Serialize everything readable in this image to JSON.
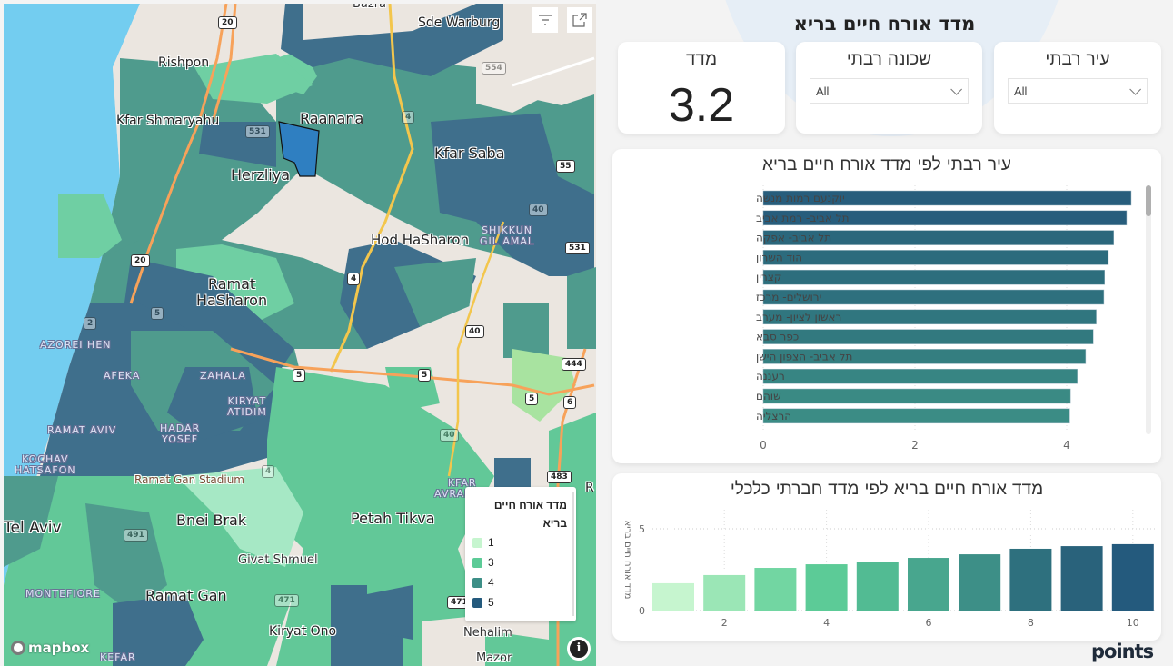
{
  "map": {
    "labels": {
      "rishpon": "Rishpon",
      "kfar_shmaryahu": "Kfar Shmaryahu",
      "raanana": "Raanana",
      "sde_warburg": "Sde Warburg",
      "kfar_saba": "Kfar Saba",
      "herzliya": "Herzliya",
      "hod_hasharon": "Hod HaSharon",
      "shikkun_gil_amal": "SHIKKUN\nGIL AMAL",
      "ramat_hasharon": "Ramat\nHaSharon",
      "azorei_hen": "AZOREI HEN",
      "afeka": "AFEKA",
      "zahala": "ZAHALA",
      "kiryat_atidim": "KIRYAT\nATIDIM",
      "ramat_aviv": "RAMAT AVIV",
      "hadar_yosef": "HADAR\nYOSEF",
      "kochav_hatsafon": "KOCHAV\nHATSAFON",
      "ramat_gan_stadium": "Ramat Gan Stadium",
      "kfar_avraham": "KFAR\nAVRAHAM",
      "tel_aviv": "Tel Aviv",
      "bnei_brak": "Bnei Brak",
      "petah_tikva": "Petah Tikva",
      "givat_shmuel": "Givat Shmuel",
      "montefiore": "MONTEFIORE",
      "ramat_gan": "Ramat Gan",
      "kiryat_ono": "Kiryat Ono",
      "nehalim": "Nehalim",
      "mazor": "Mazor",
      "kefar": "KEFAR",
      "bazra": "Bazra",
      "r_edge": "R"
    },
    "road_shields": [
      "20",
      "554",
      "531",
      "4",
      "55",
      "40",
      "531",
      "20",
      "4",
      "5",
      "5",
      "40",
      "444",
      "5",
      "6",
      "40",
      "483",
      "491",
      "471",
      "471",
      "4",
      "2",
      "5"
    ],
    "legend": {
      "title": "מדד אורח חיים בריא",
      "items": [
        {
          "label": "1",
          "color": "#c6f5cf"
        },
        {
          "label": "3",
          "color": "#5ccb97"
        },
        {
          "label": "4",
          "color": "#3d8f87"
        },
        {
          "label": "5",
          "color": "#245a7d"
        }
      ]
    },
    "attribution": "mapbox",
    "info_icon": "i",
    "tools": {
      "filter_icon": "filter-icon",
      "focus_icon": "focus-mode-icon"
    }
  },
  "dashboard": {
    "title": "מדד אורח חיים בריא",
    "kpi": {
      "label": "מדד",
      "value": "3.2"
    },
    "slicers": [
      {
        "label": "שכונה רבתי",
        "value": "All"
      },
      {
        "label": "עיר רבתי",
        "value": "All"
      }
    ],
    "logo": "points"
  },
  "chart_data": [
    {
      "type": "bar",
      "orientation": "horizontal",
      "title": "עיר רבתי לפי מדד אורח חיים בריא",
      "categories": [
        "יוקנעם רמות מנשה",
        "תל אביב- רמת אביב",
        "תל אביב- אפקה",
        "הוד השרון",
        "קצרין",
        "ירושלים- מרכז",
        "ראשון לציון- מערב",
        "כפר סבא",
        "תל אביב- הצפון הישן",
        "רעננה",
        "שוהם",
        "הרצליה"
      ],
      "values": [
        4.85,
        4.79,
        4.62,
        4.55,
        4.5,
        4.49,
        4.39,
        4.35,
        4.25,
        4.14,
        4.05,
        4.04
      ],
      "colors": [
        "#275d7c",
        "#275d7c",
        "#2b677c",
        "#2c6b7d",
        "#2d6e7d",
        "#2e707e",
        "#30767f",
        "#32797f",
        "#347e80",
        "#378583",
        "#3a8a84",
        "#3b8c85"
      ],
      "xticks": [
        "0",
        "2",
        "4"
      ],
      "xlim": [
        0,
        4.9
      ],
      "grid": true
    },
    {
      "type": "bar",
      "orientation": "vertical",
      "title": "מדד אורח חיים בריא לפי מדד חברתי כלכלי",
      "ylabel": "מדד אורח חיים בריא",
      "categories": [
        "1",
        "2",
        "3",
        "4",
        "5",
        "6",
        "7",
        "8",
        "9",
        "10"
      ],
      "values": [
        1.67,
        2.17,
        2.61,
        2.83,
        3.0,
        3.22,
        3.44,
        3.78,
        3.94,
        4.06
      ],
      "colors": [
        "#c6f5cf",
        "#9be6b6",
        "#72d6a2",
        "#5ccb97",
        "#52bb93",
        "#48a68e",
        "#3d8f87",
        "#2e707e",
        "#29627b",
        "#245a7d"
      ],
      "xticks": [
        "2",
        "4",
        "6",
        "8",
        "10"
      ],
      "yticks": [
        "0",
        "5"
      ],
      "ylim": [
        0,
        5
      ],
      "grid": true
    }
  ]
}
